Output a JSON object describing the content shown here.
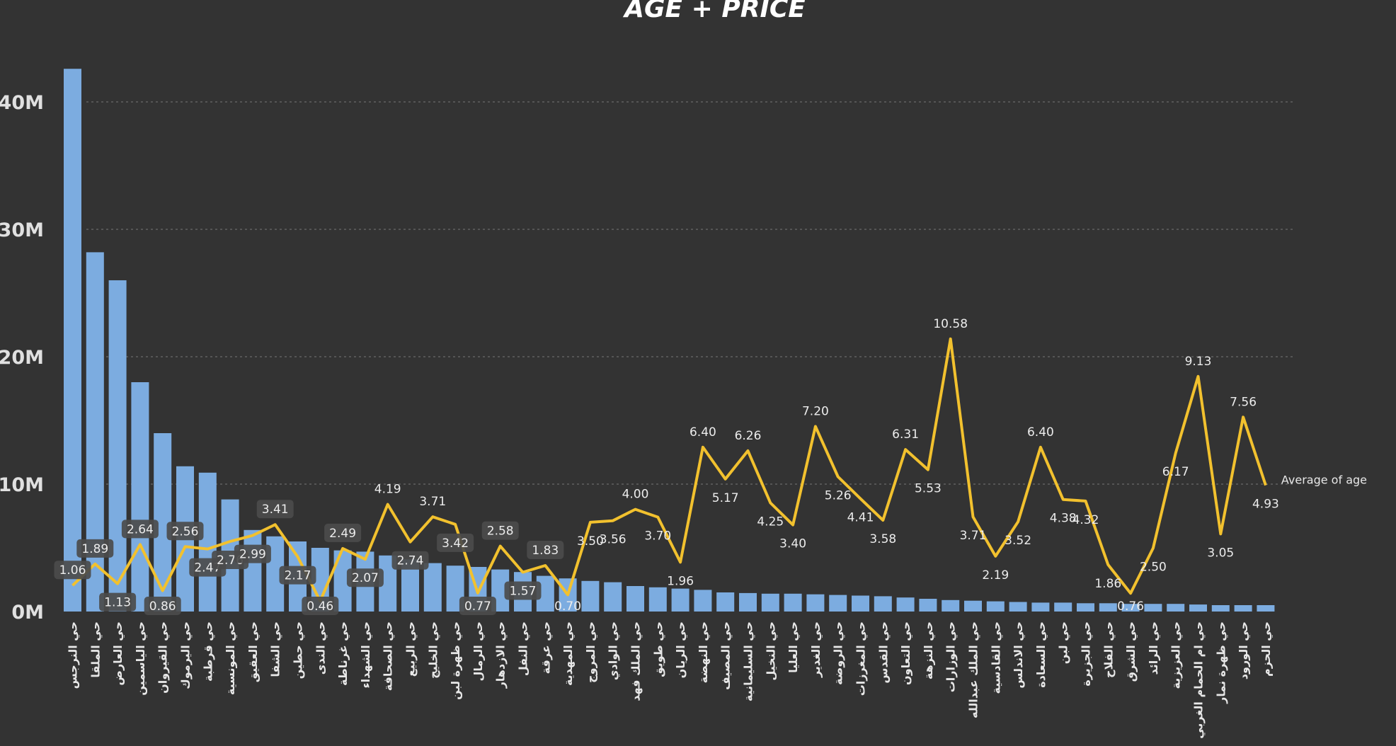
{
  "chart_data": {
    "type": "bar",
    "title": "AGE + PRICE",
    "y_ticks": [
      "0M",
      "10M",
      "20M",
      "30M",
      "40M"
    ],
    "ylim": [
      0,
      44000000
    ],
    "grid": true,
    "categories": [
      "حي النرجس",
      "حي الملقا",
      "حي العارض",
      "حي الياسمين",
      "حي القيروان",
      "حي اليرموك",
      "حي قرطبة",
      "حي المونسية",
      "حي العقيق",
      "حي الشفا",
      "حي حطين",
      "حي الندى",
      "حي غرناطة",
      "حي الشهداء",
      "حي الصحافة",
      "حي الربيع",
      "حي الخليج",
      "حي ظهرة لبن",
      "حي الرمال",
      "حي الازدهار",
      "حي النفل",
      "حي عرقة",
      "حي المهدية",
      "حي المروج",
      "حي الوادي",
      "حي الملك فهد",
      "حي طويق",
      "حي الريان",
      "حي النهضة",
      "حي المصيف",
      "حي السليمانية",
      "حي النخيل",
      "حي العليا",
      "حي الغدير",
      "حي الروضة",
      "حي المغرزات",
      "حي القدس",
      "حي التعاون",
      "حي النزهة",
      "حي الوزارات",
      "حي الملك عبدالله",
      "حي القادسية",
      "حي الاندلس",
      "حي السعادة",
      "حي لبن",
      "حي الجزيرة",
      "حي الفلاح",
      "حي الشرق",
      "حي الرائد",
      "حي العزيزية",
      "حي ام الحمام الغربي",
      "حي ظهرة نمار",
      "حي الورود",
      "حي الحزم"
    ],
    "series": [
      {
        "type": "bar",
        "color": "#7cace0",
        "values": [
          42600000,
          28200000,
          26000000,
          18000000,
          14000000,
          11400000,
          10900000,
          8800000,
          6400000,
          5900000,
          5500000,
          5000000,
          4800000,
          4700000,
          4400000,
          4100000,
          3800000,
          3600000,
          3500000,
          3300000,
          3100000,
          2800000,
          2600000,
          2400000,
          2300000,
          2000000,
          1900000,
          1800000,
          1700000,
          1500000,
          1450000,
          1400000,
          1400000,
          1350000,
          1300000,
          1250000,
          1200000,
          1100000,
          1000000,
          900000,
          850000,
          800000,
          750000,
          700000,
          700000,
          650000,
          650000,
          600000,
          600000,
          600000,
          550000,
          500000,
          500000,
          500000
        ]
      },
      {
        "name": "Average of age",
        "type": "line",
        "color": "#f2c12e",
        "values": [
          1.06,
          1.89,
          1.13,
          2.64,
          0.86,
          2.56,
          2.47,
          2.76,
          2.99,
          3.41,
          2.17,
          0.46,
          2.49,
          2.07,
          4.19,
          2.74,
          3.71,
          3.42,
          0.77,
          2.58,
          1.57,
          1.83,
          0.7,
          3.5,
          3.56,
          4.0,
          3.7,
          1.96,
          6.4,
          5.17,
          6.26,
          4.25,
          3.4,
          7.2,
          5.26,
          4.41,
          3.58,
          6.31,
          5.53,
          10.58,
          3.71,
          2.19,
          3.52,
          6.4,
          4.38,
          4.32,
          1.86,
          0.76,
          2.5,
          6.17,
          9.13,
          3.05,
          7.56,
          4.93
        ]
      }
    ]
  }
}
